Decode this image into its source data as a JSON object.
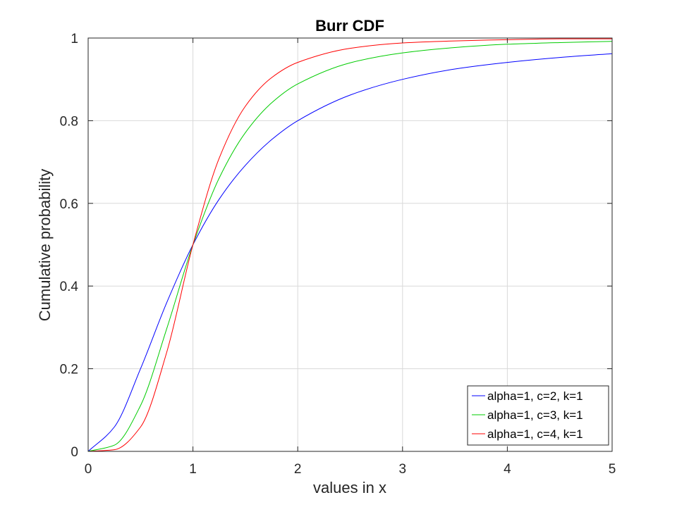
{
  "chart_data": {
    "type": "line",
    "title": "Burr CDF",
    "xlabel": "values in x",
    "ylabel": "Cumulative probability",
    "xlim": [
      0,
      5
    ],
    "ylim": [
      0,
      1
    ],
    "xticks": [
      0,
      1,
      2,
      3,
      4,
      5
    ],
    "xtick_labels": [
      "0",
      "1",
      "2",
      "3",
      "4",
      "5"
    ],
    "yticks": [
      0,
      0.2,
      0.4,
      0.6,
      0.8,
      1
    ],
    "ytick_labels": [
      "0",
      "0.2",
      "0.4",
      "0.6",
      "0.8",
      "1"
    ],
    "grid": true,
    "legend_position": "bottom-right",
    "x": [
      0,
      0.25,
      0.5,
      0.75,
      1,
      1.25,
      1.5,
      1.75,
      2,
      2.5,
      3,
      3.5,
      4,
      4.5,
      5
    ],
    "series": [
      {
        "name": "alpha=1, c=2, k=1",
        "color": "#0000ff",
        "values": [
          0,
          0.059,
          0.2,
          0.36,
          0.5,
          0.61,
          0.692,
          0.754,
          0.8,
          0.862,
          0.9,
          0.925,
          0.941,
          0.953,
          0.962
        ]
      },
      {
        "name": "alpha=1, c=3, k=1",
        "color": "#00cc00",
        "values": [
          0,
          0.015,
          0.111,
          0.297,
          0.5,
          0.661,
          0.771,
          0.843,
          0.889,
          0.94,
          0.964,
          0.977,
          0.985,
          0.989,
          0.992
        ]
      },
      {
        "name": "alpha=1, c=4, k=1",
        "color": "#ff0000",
        "values": [
          0,
          0.004,
          0.059,
          0.24,
          0.5,
          0.709,
          0.835,
          0.904,
          0.941,
          0.975,
          0.988,
          0.993,
          0.996,
          0.998,
          0.998
        ]
      }
    ]
  }
}
